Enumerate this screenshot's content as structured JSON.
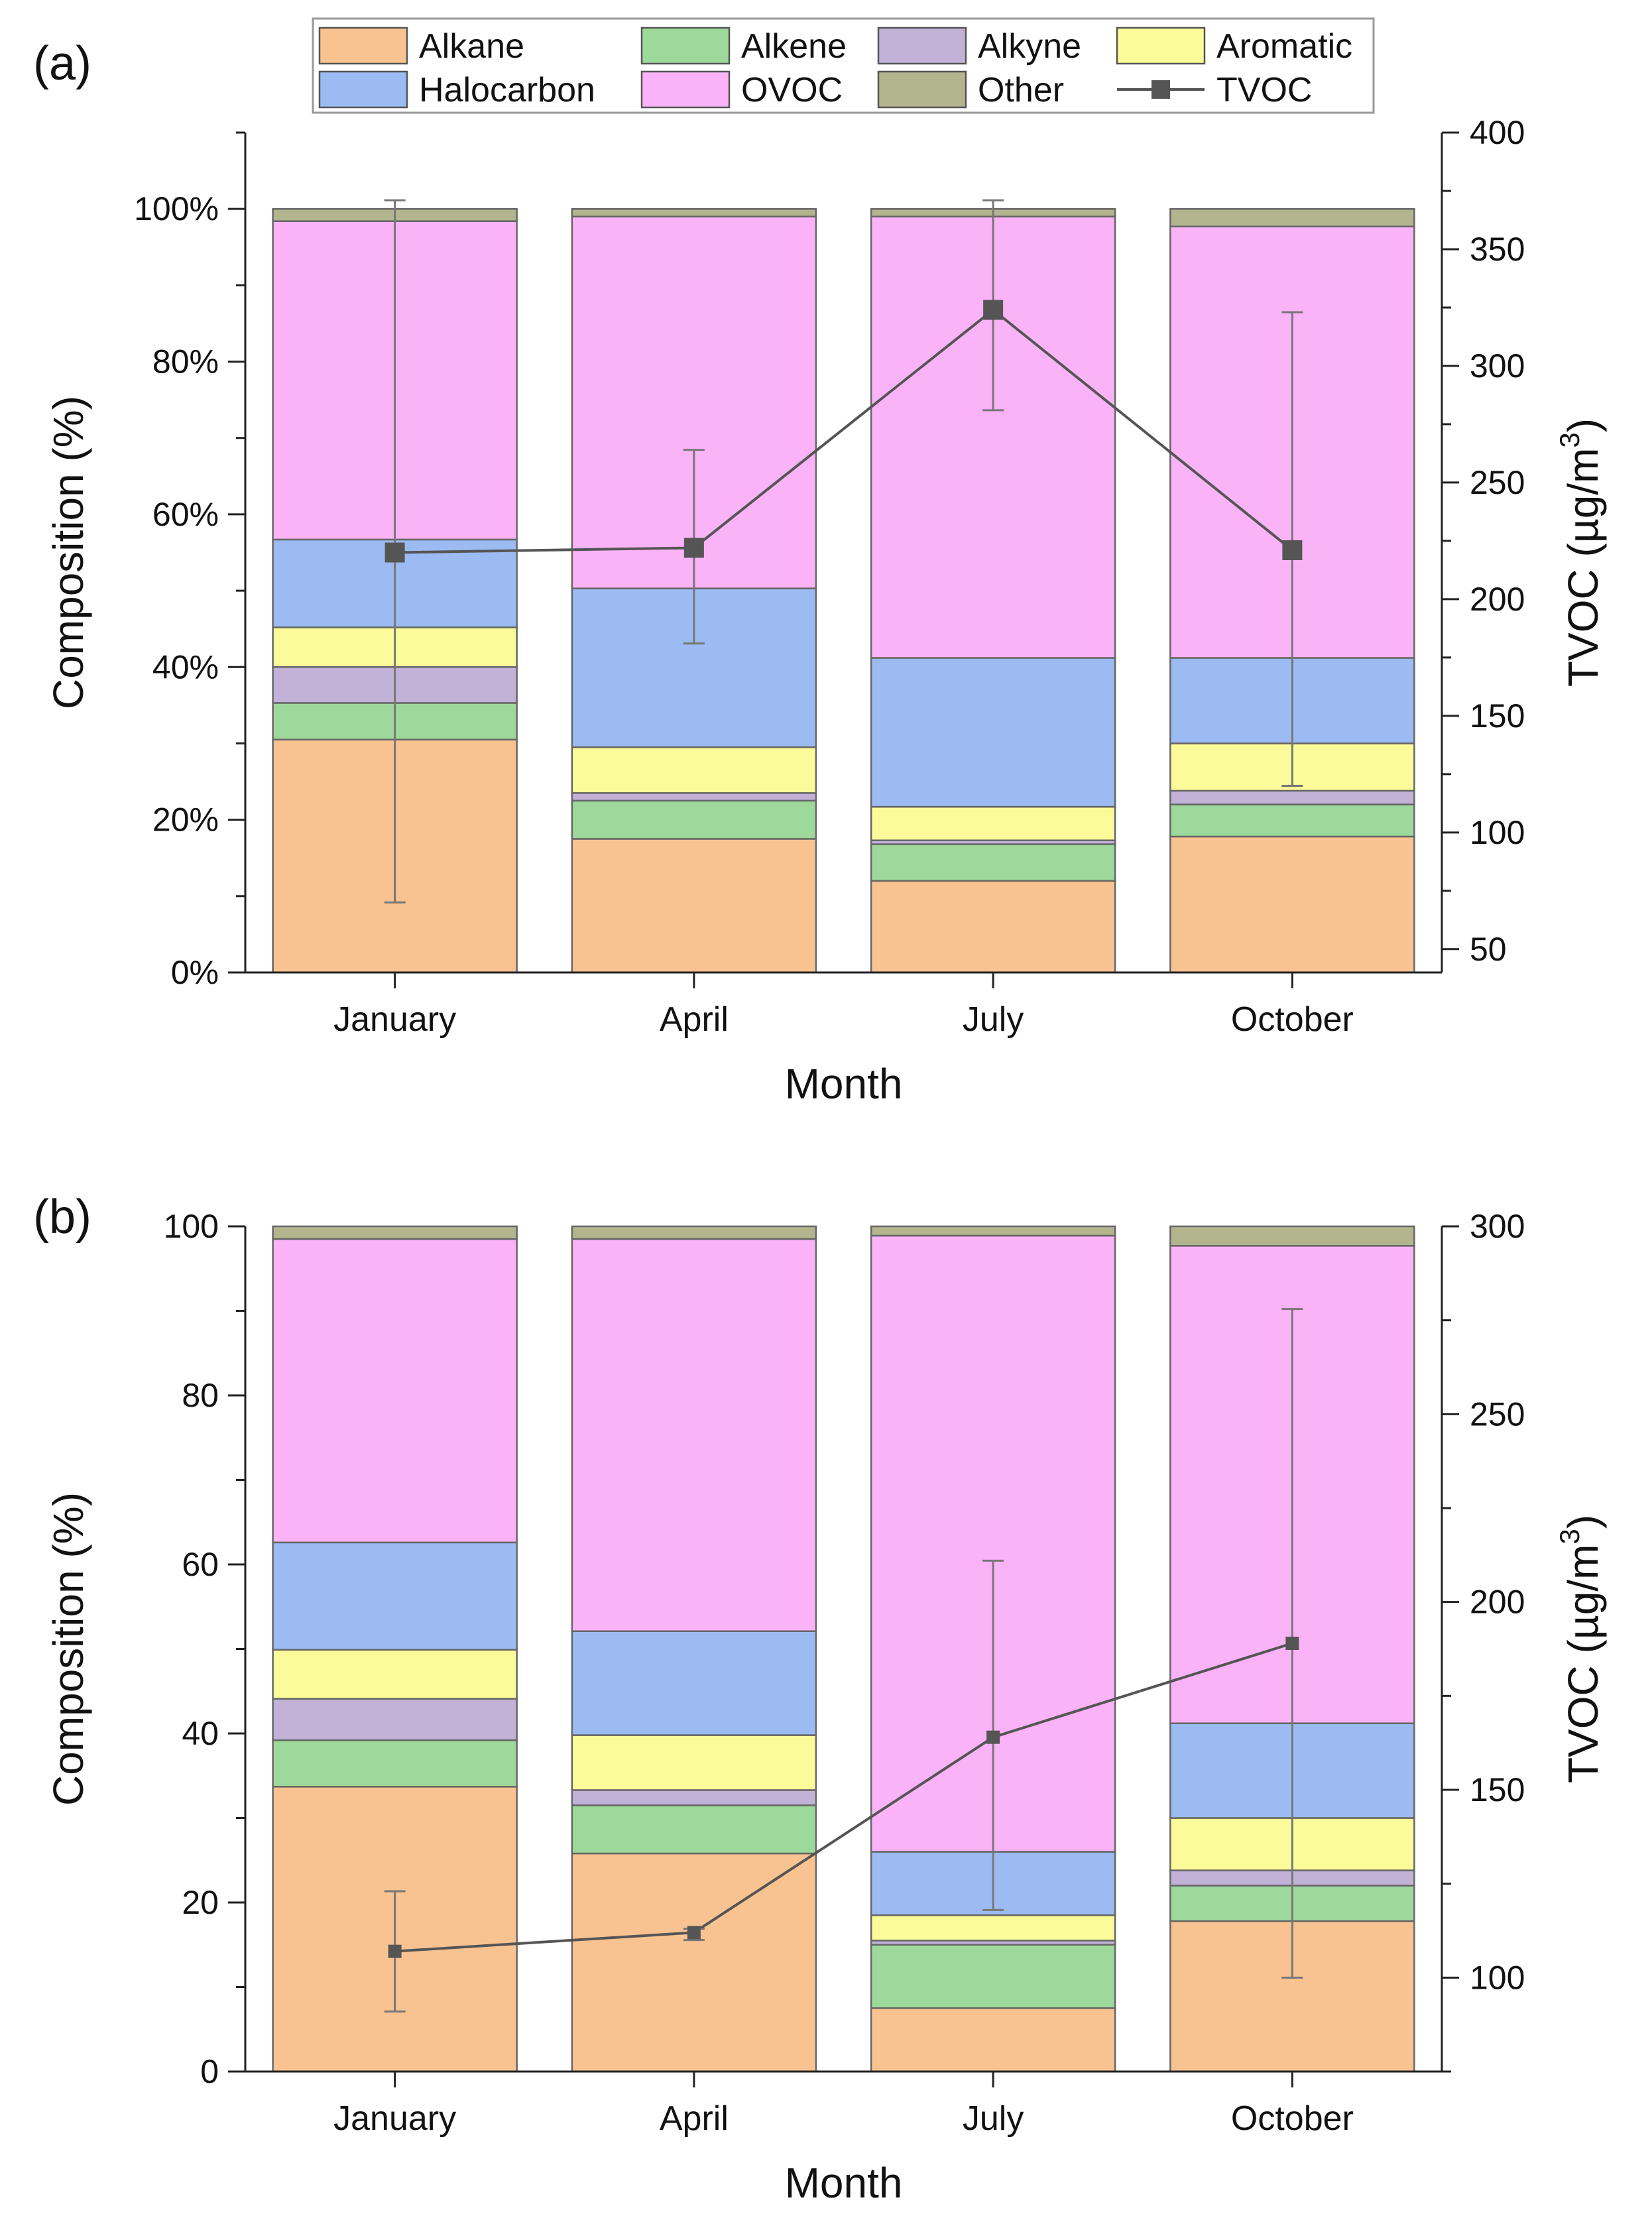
{
  "legend": {
    "entries": [
      {
        "name": "Alkane",
        "color": "#F9C391"
      },
      {
        "name": "Alkene",
        "color": "#9DD99B"
      },
      {
        "name": "Alkyne",
        "color": "#C3B2D8"
      },
      {
        "name": "Aromatic",
        "color": "#FBFB99"
      },
      {
        "name": "Halocarbon",
        "color": "#9BBBF2"
      },
      {
        "name": "OVOC",
        "color": "#FBB3F8"
      },
      {
        "name": "Other",
        "color": "#B2B58E"
      },
      {
        "name": "TVOC",
        "color": "#555555"
      }
    ]
  },
  "chart_data": [
    {
      "type": "bar",
      "panel_label": "(a)",
      "stacked": true,
      "categories": [
        "January",
        "April",
        "July",
        "October"
      ],
      "xlabel": "Month",
      "ylabel": "Composition (%)",
      "ylim": [
        0,
        110
      ],
      "yticks": [
        0,
        20,
        40,
        60,
        80,
        100
      ],
      "ytick_labels": [
        "0%",
        "20%",
        "40%",
        "60%",
        "80%",
        "100%"
      ],
      "y2label": "TVOC (µg/m",
      "y2label_sup": "3",
      "y2label_end": ")",
      "y2lim": [
        40,
        400
      ],
      "y2ticks": [
        50,
        100,
        150,
        200,
        250,
        300,
        350,
        400
      ],
      "y2tick_labels": [
        "50",
        "100",
        "150",
        "200",
        "250",
        "300",
        "350",
        "400"
      ],
      "series": [
        {
          "name": "Alkane",
          "values": [
            30.5,
            17.5,
            12.0,
            17.8
          ]
        },
        {
          "name": "Alkene",
          "values": [
            4.8,
            5.0,
            4.8,
            4.2
          ]
        },
        {
          "name": "Alkyne",
          "values": [
            4.7,
            1.0,
            0.5,
            1.8
          ]
        },
        {
          "name": "Aromatic",
          "values": [
            5.2,
            6.0,
            4.4,
            6.2
          ]
        },
        {
          "name": "Halocarbon",
          "values": [
            11.5,
            20.8,
            19.5,
            11.2
          ]
        },
        {
          "name": "OVOC",
          "values": [
            41.7,
            48.7,
            57.8,
            56.5
          ]
        },
        {
          "name": "Other",
          "values": [
            1.6,
            1.0,
            1.0,
            2.3
          ]
        }
      ],
      "line": {
        "name": "TVOC",
        "axis": "right",
        "values": [
          220,
          222,
          324,
          221
        ],
        "err_low": [
          70,
          181,
          281,
          120
        ],
        "err_high": [
          371,
          264,
          371,
          323
        ]
      }
    },
    {
      "type": "bar",
      "panel_label": "(b)",
      "stacked": true,
      "categories": [
        "January",
        "April",
        "July",
        "October"
      ],
      "xlabel": "Month",
      "ylabel": "Composition (%)",
      "ylim": [
        0,
        100
      ],
      "yticks": [
        0,
        20,
        40,
        60,
        80,
        100
      ],
      "ytick_labels": [
        "0",
        "20",
        "40",
        "60",
        "80",
        "100"
      ],
      "y2label": "TVOC (µg/m",
      "y2label_sup": "3",
      "y2label_end": ")",
      "y2lim": [
        75,
        300
      ],
      "y2ticks": [
        100,
        150,
        200,
        250,
        300
      ],
      "y2tick_labels": [
        "100",
        "150",
        "200",
        "250",
        "300"
      ],
      "series": [
        {
          "name": "Alkane",
          "values": [
            33.7,
            25.8,
            7.5,
            17.8
          ]
        },
        {
          "name": "Alkene",
          "values": [
            5.5,
            5.7,
            7.5,
            4.2
          ]
        },
        {
          "name": "Alkyne",
          "values": [
            4.9,
            1.8,
            0.5,
            1.8
          ]
        },
        {
          "name": "Aromatic",
          "values": [
            5.8,
            6.5,
            3.0,
            6.2
          ]
        },
        {
          "name": "Halocarbon",
          "values": [
            12.7,
            12.3,
            7.5,
            11.2
          ]
        },
        {
          "name": "OVOC",
          "values": [
            35.9,
            46.4,
            72.9,
            56.5
          ]
        },
        {
          "name": "Other",
          "values": [
            1.5,
            1.5,
            1.1,
            2.3
          ]
        }
      ],
      "line": {
        "name": "TVOC",
        "axis": "right",
        "values": [
          107,
          112,
          164,
          189
        ],
        "err_low": [
          91,
          110,
          118,
          100
        ],
        "err_high": [
          123,
          113,
          211,
          278
        ]
      }
    }
  ]
}
